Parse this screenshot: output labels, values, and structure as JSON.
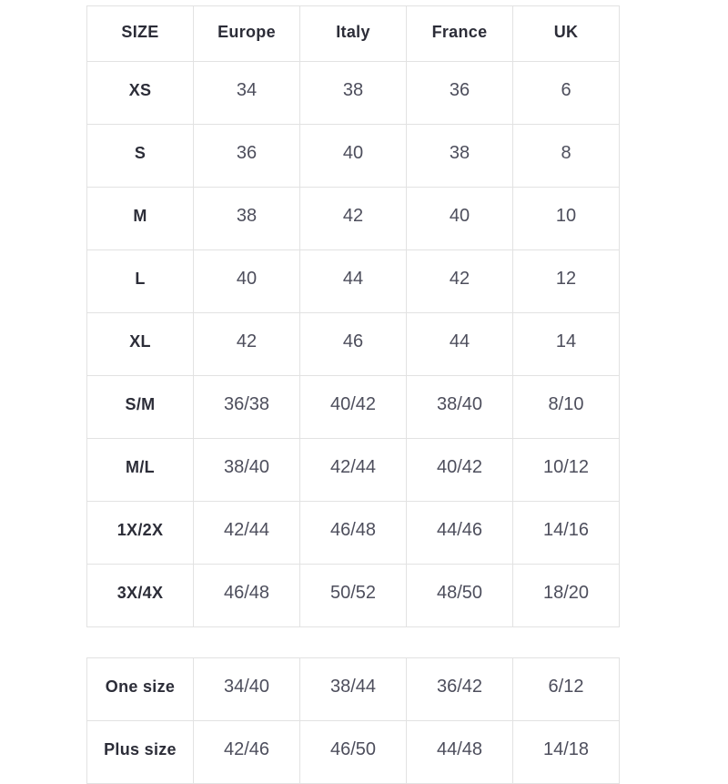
{
  "colors": {
    "background": "#ffffff",
    "border": "#e2e2e2",
    "label_text": "#2c2d38",
    "value_text": "#4d4e5c"
  },
  "chart_data": [
    {
      "type": "table",
      "columns": [
        "SIZE",
        "Europe",
        "Italy",
        "France",
        "UK"
      ],
      "rows": [
        [
          "XS",
          "34",
          "38",
          "36",
          "6"
        ],
        [
          "S",
          "36",
          "40",
          "38",
          "8"
        ],
        [
          "M",
          "38",
          "42",
          "40",
          "10"
        ],
        [
          "L",
          "40",
          "44",
          "42",
          "12"
        ],
        [
          "XL",
          "42",
          "46",
          "44",
          "14"
        ],
        [
          "S/M",
          "36/38",
          "40/42",
          "38/40",
          "8/10"
        ],
        [
          "M/L",
          "38/40",
          "42/44",
          "40/42",
          "10/12"
        ],
        [
          "1X/2X",
          "42/44",
          "46/48",
          "44/46",
          "14/16"
        ],
        [
          "3X/4X",
          "46/48",
          "50/52",
          "48/50",
          "18/20"
        ]
      ]
    },
    {
      "type": "table",
      "columns": [],
      "rows": [
        [
          "One size",
          "34/40",
          "38/44",
          "36/42",
          "6/12"
        ],
        [
          "Plus size",
          "42/46",
          "46/50",
          "44/48",
          "14/18"
        ]
      ]
    }
  ]
}
